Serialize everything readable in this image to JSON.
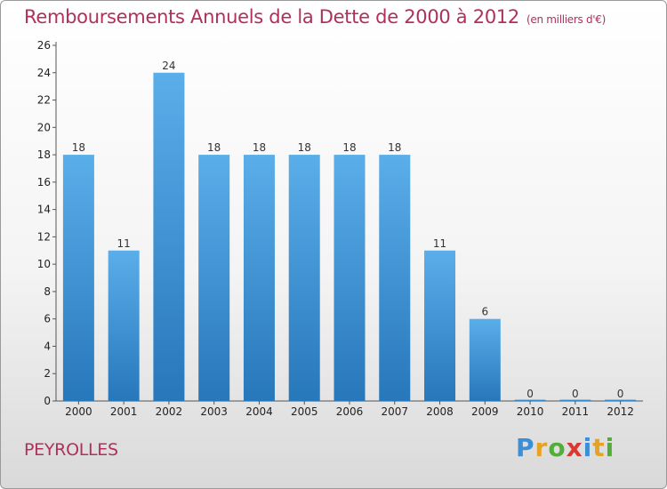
{
  "header": {
    "title": "Remboursements Annuels de la Dette de 2000 à 2012",
    "unit": "(en milliers d'€)"
  },
  "footer": {
    "commune": "PEYROLLES",
    "logo": [
      "P",
      "r",
      "o",
      "x",
      "i",
      "t",
      "i"
    ]
  },
  "colors": {
    "title": "#b0305a",
    "bar_top": "#5aaee9",
    "bar_bottom": "#2777bb"
  },
  "chart_data": {
    "type": "bar",
    "title": "Remboursements Annuels de la Dette de 2000 à 2012",
    "xlabel": "",
    "ylabel": "",
    "categories": [
      "2000",
      "2001",
      "2002",
      "2003",
      "2004",
      "2005",
      "2006",
      "2007",
      "2008",
      "2009",
      "2010",
      "2011",
      "2012"
    ],
    "values": [
      18,
      11,
      24,
      18,
      18,
      18,
      18,
      18,
      11,
      6,
      0,
      0,
      0
    ],
    "data_labels": [
      "18",
      "11",
      "24",
      "18",
      "18",
      "18",
      "18",
      "18",
      "11",
      "6",
      "0",
      "0",
      "0"
    ],
    "ylim": [
      0,
      26
    ],
    "yticks": [
      0,
      2,
      4,
      6,
      8,
      10,
      12,
      14,
      16,
      18,
      20,
      22,
      24,
      26
    ],
    "grid": false,
    "legend": "none"
  }
}
